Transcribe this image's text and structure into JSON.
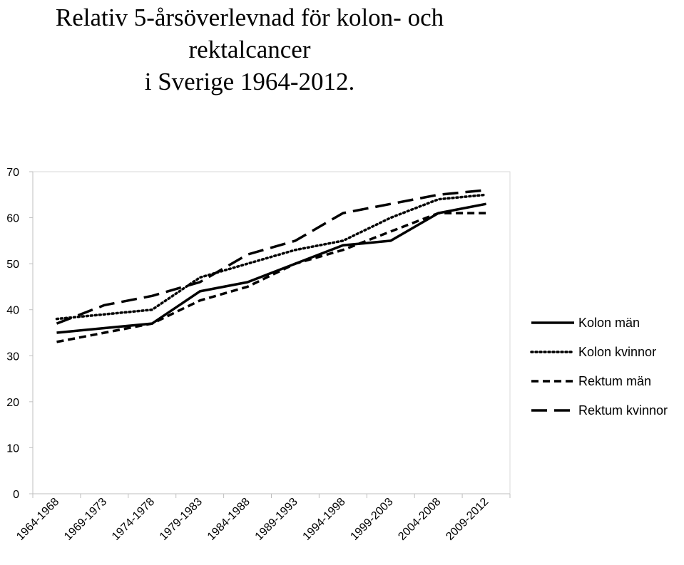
{
  "chart_data": {
    "type": "line",
    "title_line1": "Relativ 5-årsöverlevnad för kolon- och rektalcancer",
    "title_line2": "i Sverige 1964-2012.",
    "xlabel": "",
    "ylabel": "",
    "ylim": [
      0,
      70
    ],
    "yticks": [
      "0",
      "10",
      "20",
      "30",
      "40",
      "50",
      "60",
      "70"
    ],
    "grid": false,
    "legend_position": "right",
    "categories": [
      "1964-1968",
      "1969-1973",
      "1974-1978",
      "1979-1983",
      "1984-1988",
      "1989-1993",
      "1994-1998",
      "1999-2003",
      "2004-2008",
      "2009-2012"
    ],
    "series": [
      {
        "name": "Kolon män",
        "style": "solid",
        "color": "#000000",
        "values": [
          35,
          36,
          37,
          44,
          46,
          50,
          54,
          55,
          61,
          63
        ]
      },
      {
        "name": "Kolon kvinnor",
        "style": "dotted",
        "color": "#000000",
        "values": [
          38,
          39,
          40,
          47,
          50,
          53,
          55,
          60,
          64,
          65
        ]
      },
      {
        "name": "Rektum män",
        "style": "dashed",
        "color": "#000000",
        "values": [
          33,
          35,
          37,
          42,
          45,
          50,
          53,
          57,
          61,
          61
        ]
      },
      {
        "name": "Rektum kvinnor",
        "style": "longdash",
        "color": "#000000",
        "values": [
          37,
          41,
          43,
          46,
          52,
          55,
          61,
          63,
          65,
          66
        ]
      }
    ]
  }
}
